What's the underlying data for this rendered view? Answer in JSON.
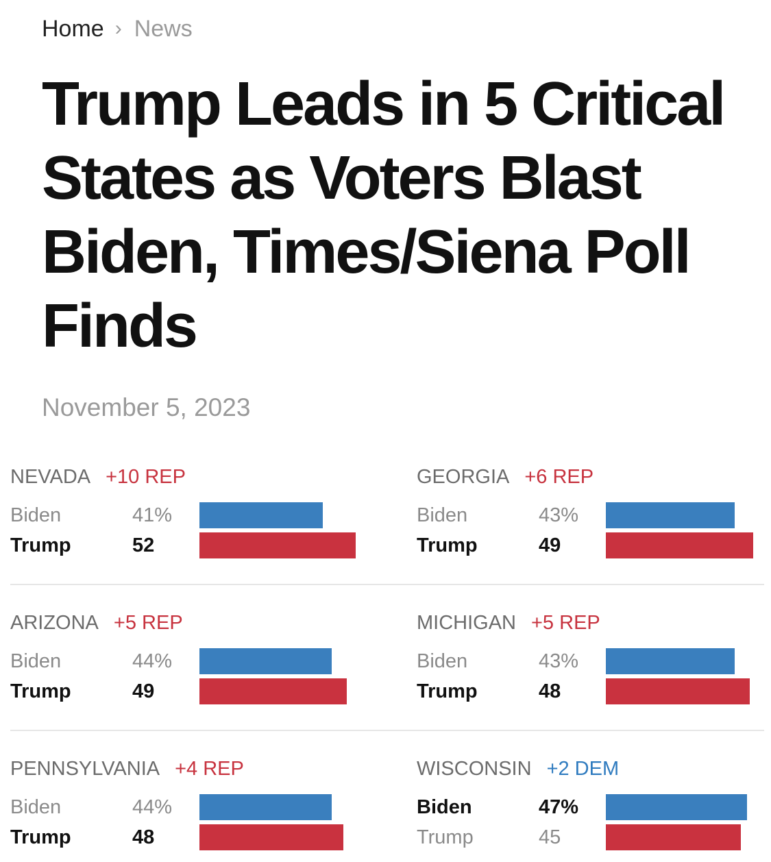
{
  "breadcrumb": {
    "home": "Home",
    "separator": "›",
    "current": "News"
  },
  "article": {
    "title": "Trump Leads in 5 Critical States as Voters Blast Biden, Times/Siena Poll Finds",
    "date": "November 5, 2023"
  },
  "colors": {
    "biden": "#3a7fbe",
    "trump": "#c9323f",
    "rep_margin": "#c7323e",
    "dem_margin": "#2f7bbf"
  },
  "chart_data": [
    {
      "type": "bar",
      "state": "NEVADA",
      "margin": "+10 REP",
      "leader": "Trump",
      "candidates": [
        {
          "name": "Biden",
          "label": "41%",
          "value": 41
        },
        {
          "name": "Trump",
          "label": "52",
          "value": 52
        }
      ]
    },
    {
      "type": "bar",
      "state": "GEORGIA",
      "margin": "+6 REP",
      "leader": "Trump",
      "candidates": [
        {
          "name": "Biden",
          "label": "43%",
          "value": 43
        },
        {
          "name": "Trump",
          "label": "49",
          "value": 49
        }
      ]
    },
    {
      "type": "bar",
      "state": "ARIZONA",
      "margin": "+5 REP",
      "leader": "Trump",
      "candidates": [
        {
          "name": "Biden",
          "label": "44%",
          "value": 44
        },
        {
          "name": "Trump",
          "label": "49",
          "value": 49
        }
      ]
    },
    {
      "type": "bar",
      "state": "MICHIGAN",
      "margin": "+5 REP",
      "leader": "Trump",
      "candidates": [
        {
          "name": "Biden",
          "label": "43%",
          "value": 43
        },
        {
          "name": "Trump",
          "label": "48",
          "value": 48
        }
      ]
    },
    {
      "type": "bar",
      "state": "PENNSYLVANIA",
      "margin": "+4 REP",
      "leader": "Trump",
      "candidates": [
        {
          "name": "Biden",
          "label": "44%",
          "value": 44
        },
        {
          "name": "Trump",
          "label": "48",
          "value": 48
        }
      ]
    },
    {
      "type": "bar",
      "state": "WISCONSIN",
      "margin": "+2 DEM",
      "leader": "Biden",
      "candidates": [
        {
          "name": "Biden",
          "label": "47%",
          "value": 47
        },
        {
          "name": "Trump",
          "label": "45",
          "value": 45
        }
      ]
    }
  ]
}
